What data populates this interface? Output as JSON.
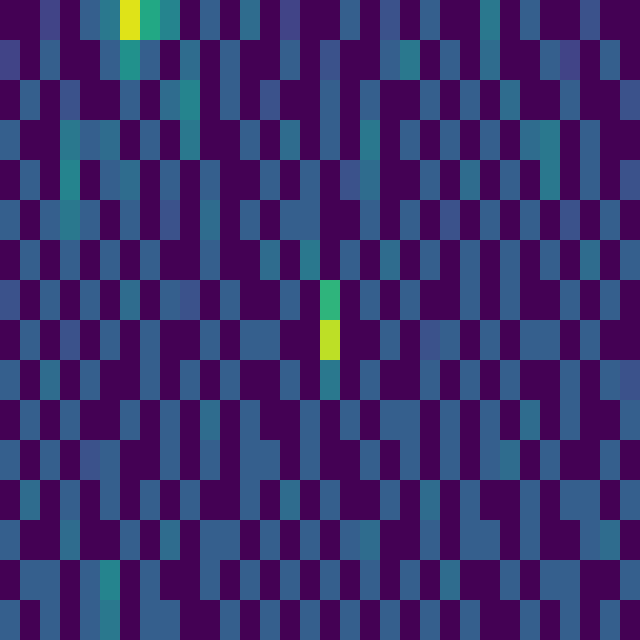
{
  "chart_data": {
    "type": "heatmap",
    "tick_labels": false,
    "zlim": [
      0,
      1
    ],
    "cells": [
      [
        0,
        0,
        0.2,
        0,
        0.3,
        0.4,
        0.95,
        0.6,
        0.45,
        0,
        0.3,
        0,
        0.35,
        0,
        0.2,
        0,
        0,
        0.3,
        0,
        0.25,
        0,
        0.3,
        0,
        0,
        0.4,
        0,
        0.3,
        0,
        0,
        0.25,
        0,
        0
      ],
      [
        0.2,
        0,
        0.3,
        0,
        0,
        0.3,
        0.5,
        0.3,
        0,
        0.35,
        0,
        0.3,
        0,
        0,
        0.3,
        0,
        0.25,
        0,
        0,
        0.3,
        0.4,
        0,
        0.3,
        0,
        0.35,
        0,
        0,
        0.3,
        0.2,
        0,
        0.3,
        0
      ],
      [
        0,
        0.3,
        0,
        0.25,
        0,
        0,
        0.3,
        0,
        0.35,
        0.45,
        0,
        0.3,
        0,
        0.25,
        0,
        0,
        0.3,
        0,
        0.3,
        0,
        0,
        0.3,
        0,
        0.3,
        0,
        0.35,
        0,
        0,
        0.3,
        0,
        0,
        0.25
      ],
      [
        0.3,
        0,
        0,
        0.4,
        0.3,
        0.35,
        0,
        0.3,
        0,
        0.4,
        0,
        0,
        0.3,
        0,
        0.35,
        0,
        0.3,
        0,
        0.4,
        0,
        0.3,
        0,
        0.3,
        0,
        0.3,
        0,
        0.35,
        0.4,
        0,
        0.3,
        0,
        0
      ],
      [
        0,
        0.3,
        0,
        0.45,
        0,
        0.3,
        0.35,
        0,
        0.3,
        0,
        0.3,
        0,
        0,
        0.3,
        0,
        0.3,
        0,
        0.25,
        0.35,
        0,
        0,
        0.3,
        0,
        0.35,
        0,
        0.3,
        0,
        0.4,
        0,
        0.3,
        0,
        0.25
      ],
      [
        0.3,
        0,
        0.3,
        0.4,
        0.3,
        0,
        0.3,
        0,
        0.25,
        0,
        0.35,
        0,
        0.3,
        0,
        0.3,
        0.3,
        0,
        0,
        0.3,
        0,
        0.3,
        0,
        0.25,
        0,
        0.3,
        0,
        0.3,
        0,
        0.25,
        0,
        0.3,
        0
      ],
      [
        0,
        0.3,
        0,
        0.3,
        0,
        0.3,
        0,
        0.3,
        0,
        0,
        0.3,
        0,
        0,
        0.35,
        0,
        0.4,
        0,
        0.3,
        0,
        0.35,
        0,
        0.3,
        0,
        0.3,
        0,
        0.3,
        0,
        0.3,
        0,
        0.35,
        0,
        0.3
      ],
      [
        0.25,
        0,
        0.3,
        0,
        0.3,
        0,
        0.35,
        0,
        0.3,
        0.25,
        0,
        0.3,
        0,
        0,
        0.3,
        0,
        0.65,
        0,
        0.3,
        0,
        0.3,
        0,
        0,
        0.3,
        0,
        0.3,
        0,
        0,
        0.3,
        0,
        0.3,
        0
      ],
      [
        0,
        0.3,
        0,
        0.25,
        0,
        0.3,
        0,
        0.3,
        0,
        0,
        0.3,
        0,
        0.3,
        0.3,
        0,
        0,
        0.9,
        0,
        0,
        0.3,
        0,
        0.25,
        0.3,
        0,
        0.3,
        0,
        0.3,
        0.3,
        0,
        0.3,
        0,
        0
      ],
      [
        0.3,
        0,
        0.35,
        0,
        0.3,
        0,
        0,
        0.3,
        0,
        0.3,
        0,
        0.3,
        0,
        0,
        0.3,
        0,
        0.4,
        0,
        0.3,
        0,
        0,
        0.3,
        0,
        0.3,
        0,
        0.3,
        0,
        0,
        0.3,
        0,
        0.3,
        0.25
      ],
      [
        0,
        0.3,
        0,
        0.3,
        0,
        0,
        0.3,
        0,
        0.3,
        0,
        0.35,
        0,
        0.3,
        0,
        0,
        0.3,
        0,
        0.3,
        0,
        0.3,
        0.3,
        0,
        0.3,
        0,
        0.3,
        0,
        0.35,
        0,
        0.3,
        0,
        0,
        0.3
      ],
      [
        0.3,
        0,
        0.3,
        0,
        0.25,
        0.3,
        0,
        0,
        0.3,
        0,
        0.3,
        0,
        0.3,
        0.3,
        0,
        0.3,
        0,
        0,
        0.3,
        0,
        0.3,
        0,
        0.3,
        0,
        0.3,
        0.35,
        0,
        0.3,
        0,
        0,
        0.3,
        0
      ],
      [
        0,
        0.35,
        0,
        0.3,
        0,
        0.3,
        0,
        0.3,
        0,
        0.3,
        0,
        0,
        0.3,
        0,
        0.35,
        0,
        0.3,
        0,
        0,
        0.3,
        0,
        0.35,
        0,
        0.3,
        0,
        0,
        0.3,
        0,
        0.3,
        0.3,
        0,
        0.3
      ],
      [
        0.3,
        0,
        0,
        0.35,
        0,
        0,
        0.3,
        0,
        0.35,
        0,
        0.3,
        0.3,
        0,
        0.3,
        0,
        0.3,
        0,
        0.3,
        0.35,
        0,
        0,
        0.3,
        0,
        0.3,
        0.3,
        0,
        0.3,
        0,
        0,
        0.3,
        0.35,
        0
      ],
      [
        0,
        0.3,
        0.3,
        0,
        0.3,
        0.45,
        0,
        0.3,
        0,
        0,
        0.3,
        0,
        0.3,
        0,
        0.3,
        0,
        0.3,
        0,
        0.3,
        0,
        0.3,
        0,
        0.35,
        0,
        0,
        0.3,
        0,
        0.3,
        0.3,
        0,
        0,
        0.3
      ],
      [
        0.3,
        0,
        0.3,
        0,
        0.3,
        0.4,
        0,
        0.3,
        0.3,
        0,
        0,
        0.3,
        0,
        0.3,
        0,
        0.3,
        0,
        0.3,
        0,
        0.3,
        0,
        0.3,
        0,
        0.3,
        0,
        0,
        0.3,
        0,
        0.3,
        0,
        0.3,
        0
      ]
    ]
  }
}
